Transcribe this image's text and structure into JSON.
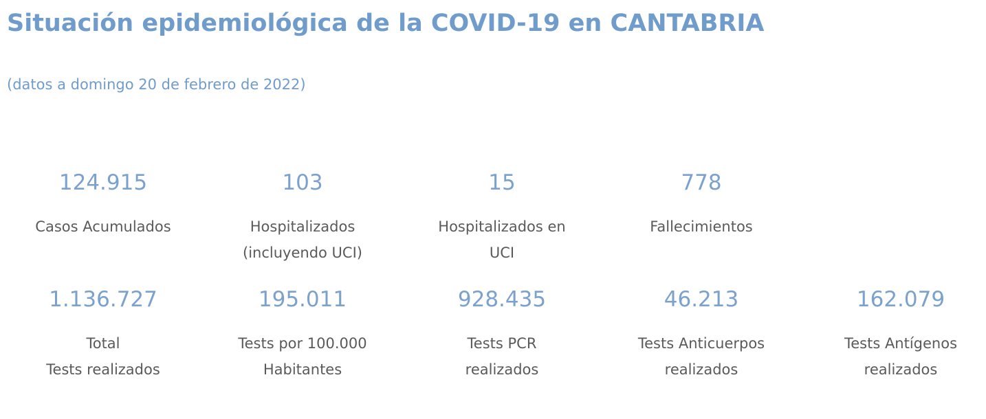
{
  "header": {
    "title": "Situación epidemiológica de la COVID-19 en CANTABRIA",
    "subtitle": "(datos a domingo 20 de febrero de 2022)"
  },
  "stats_row_1": [
    {
      "value": "124.915",
      "label": "Casos Acumulados"
    },
    {
      "value": "103",
      "label": "Hospitalizados\n(incluyendo UCI)"
    },
    {
      "value": "15",
      "label": "Hospitalizados en\nUCI"
    },
    {
      "value": "778",
      "label": "Fallecimientos"
    }
  ],
  "stats_row_2": [
    {
      "value": "1.136.727",
      "label": "Total\nTests realizados"
    },
    {
      "value": "195.011",
      "label": "Tests por 100.000\nHabitantes"
    },
    {
      "value": "928.435",
      "label": "Tests PCR\nrealizados"
    },
    {
      "value": "46.213",
      "label": "Tests Anticuerpos\nrealizados"
    },
    {
      "value": "162.079",
      "label": "Tests Antígenos\nrealizados"
    }
  ],
  "colors": {
    "accent": "#6f9ccb",
    "value": "#7ba1cd",
    "label": "#5a5a5a"
  }
}
